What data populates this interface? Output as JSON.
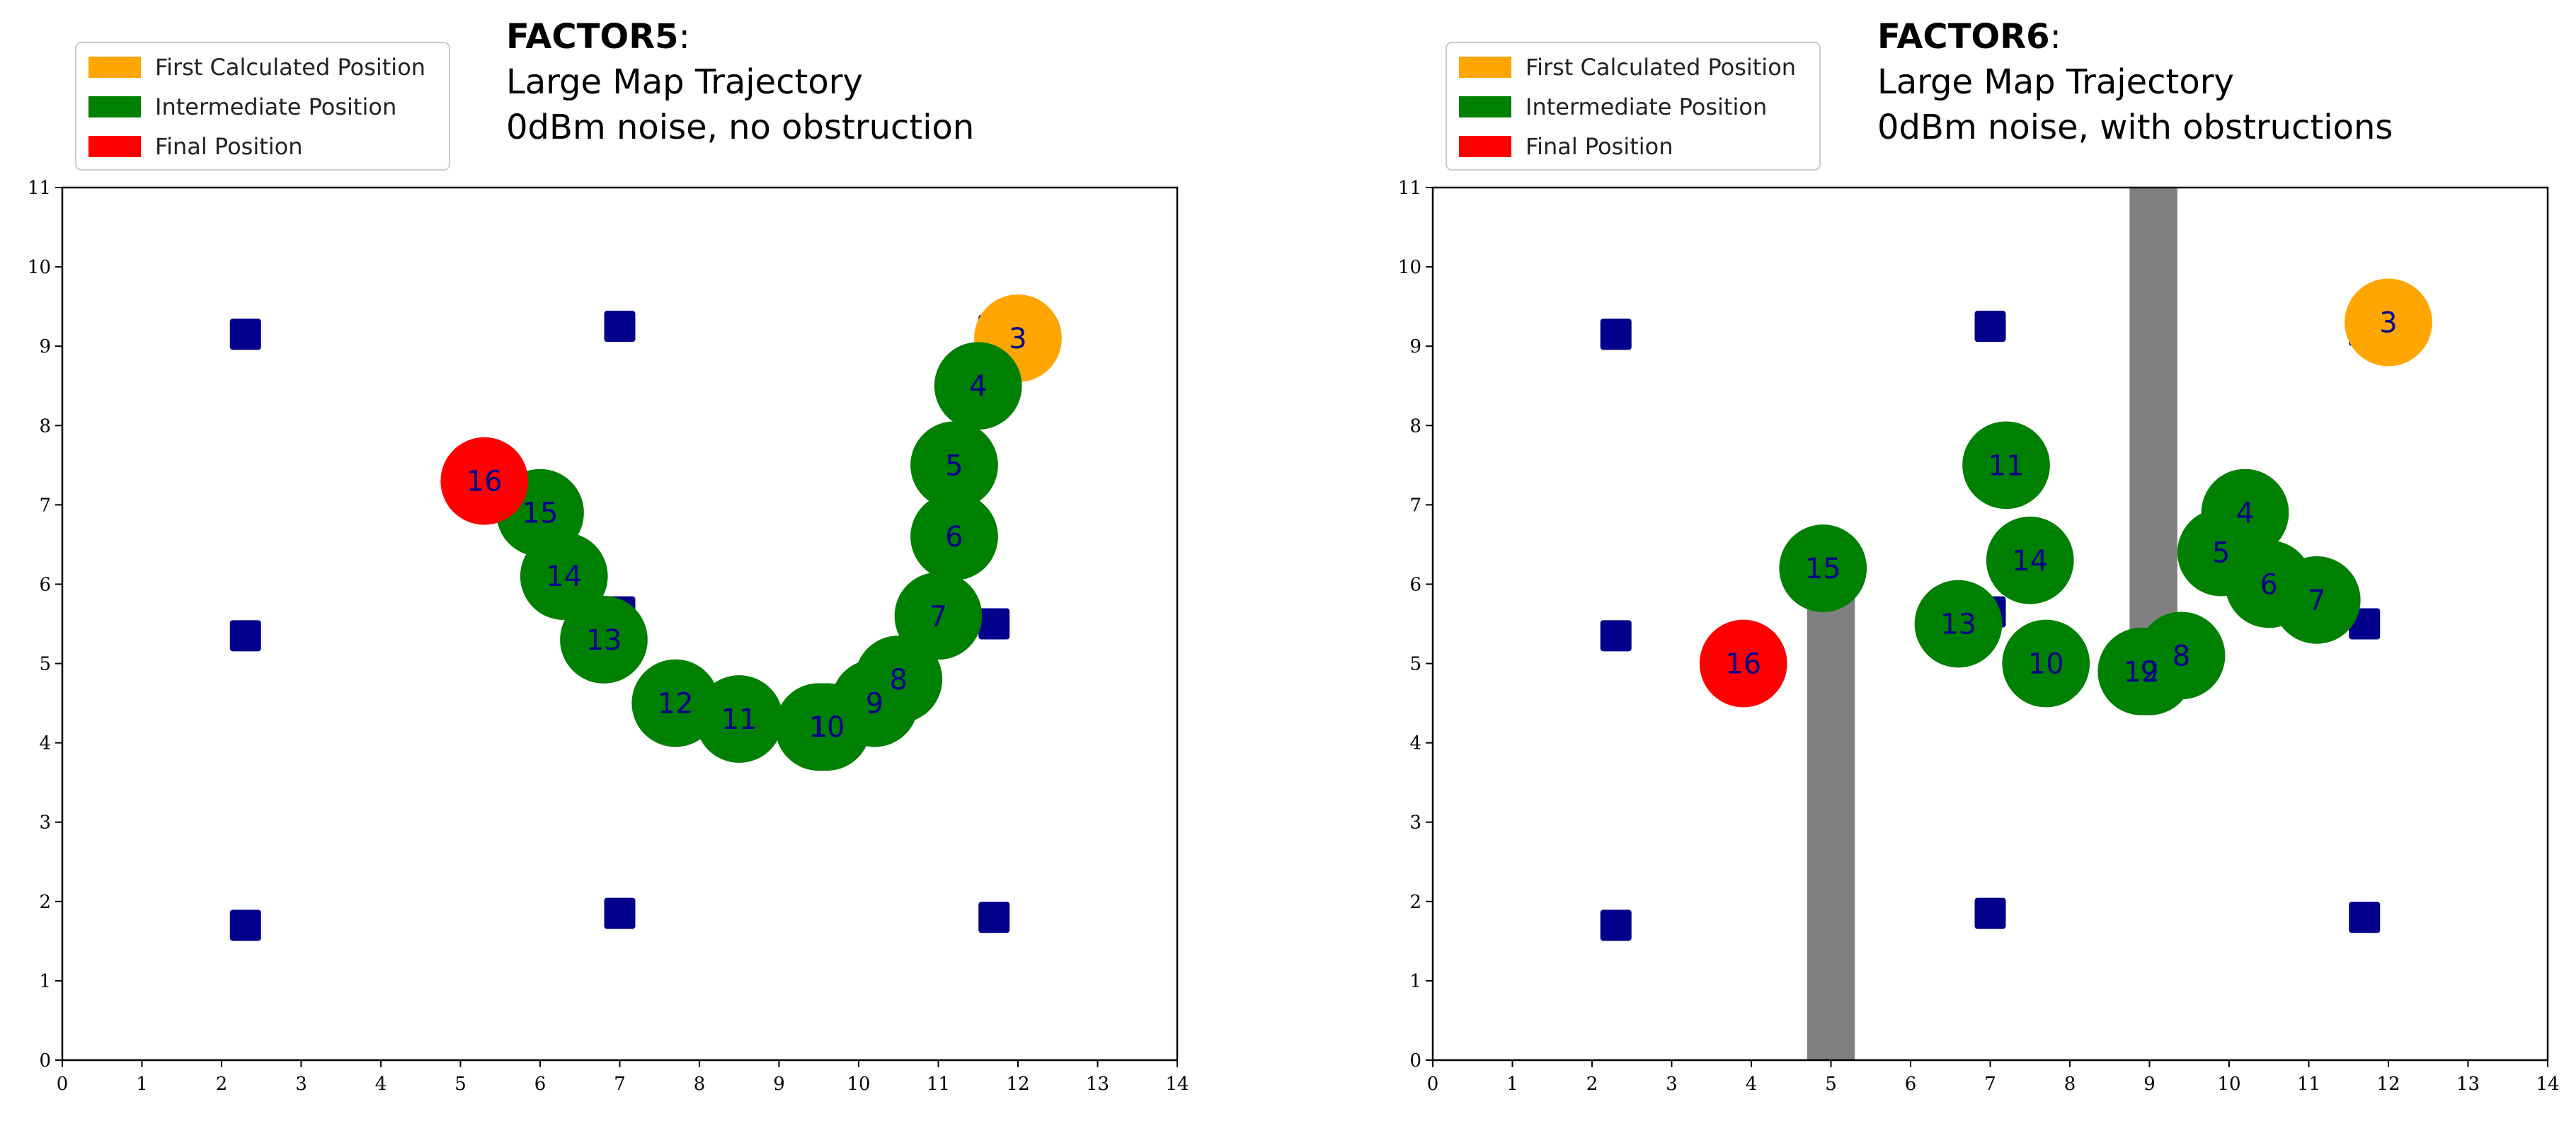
{
  "colors": {
    "first": "#ffa500",
    "intermediate": "#008000",
    "final": "#ff0000",
    "anchor": "#00008b",
    "obstruction": "#808080",
    "label": "#00008b"
  },
  "chart_data": [
    {
      "type": "scatter",
      "title": "FACTOR5:",
      "title_bold": "FACTOR5",
      "title_suffix": ":",
      "subtitle_lines": [
        "Large Map Trajectory",
        "0dBm noise, no obstruction"
      ],
      "xlim": [
        0,
        14
      ],
      "ylim": [
        0,
        11
      ],
      "x_ticks": [
        "0",
        "1",
        "2",
        "3",
        "4",
        "5",
        "6",
        "7",
        "8",
        "9",
        "10",
        "11",
        "12",
        "13",
        "14"
      ],
      "y_ticks": [
        "0",
        "1",
        "2",
        "3",
        "4",
        "5",
        "6",
        "7",
        "8",
        "9",
        "10",
        "11"
      ],
      "legend": {
        "placement": "top-left",
        "entries": [
          {
            "label": "First Calculated Position",
            "kind": "first"
          },
          {
            "label": "Intermediate Position",
            "kind": "intermediate"
          },
          {
            "label": "Final Position",
            "kind": "final"
          }
        ]
      },
      "anchors": [
        {
          "x": 2.3,
          "y": 9.15
        },
        {
          "x": 7.0,
          "y": 9.25
        },
        {
          "x": 11.7,
          "y": 9.2
        },
        {
          "x": 2.3,
          "y": 5.35
        },
        {
          "x": 7.0,
          "y": 5.65
        },
        {
          "x": 11.7,
          "y": 5.5
        },
        {
          "x": 2.3,
          "y": 1.7
        },
        {
          "x": 7.0,
          "y": 1.85
        },
        {
          "x": 11.7,
          "y": 1.8
        }
      ],
      "obstructions": [],
      "positions": [
        {
          "label": "3",
          "x": 12.0,
          "y": 9.1,
          "kind": "first"
        },
        {
          "label": "4",
          "x": 11.5,
          "y": 8.5,
          "kind": "intermediate"
        },
        {
          "label": "5",
          "x": 11.2,
          "y": 7.5,
          "kind": "intermediate"
        },
        {
          "label": "6",
          "x": 11.2,
          "y": 6.6,
          "kind": "intermediate"
        },
        {
          "label": "7",
          "x": 11.0,
          "y": 5.6,
          "kind": "intermediate"
        },
        {
          "label": "8",
          "x": 10.5,
          "y": 4.8,
          "kind": "intermediate"
        },
        {
          "label": "9",
          "x": 10.2,
          "y": 4.5,
          "kind": "intermediate"
        },
        {
          "label": "1",
          "x": 9.5,
          "y": 4.2,
          "kind": "intermediate"
        },
        {
          "label": "10",
          "x": 9.6,
          "y": 4.2,
          "kind": "intermediate"
        },
        {
          "label": "11",
          "x": 8.5,
          "y": 4.3,
          "kind": "intermediate"
        },
        {
          "label": "12",
          "x": 7.7,
          "y": 4.5,
          "kind": "intermediate"
        },
        {
          "label": "13",
          "x": 6.8,
          "y": 5.3,
          "kind": "intermediate"
        },
        {
          "label": "14",
          "x": 6.3,
          "y": 6.1,
          "kind": "intermediate"
        },
        {
          "label": "15",
          "x": 6.0,
          "y": 6.9,
          "kind": "intermediate"
        },
        {
          "label": "16",
          "x": 5.3,
          "y": 7.3,
          "kind": "final"
        }
      ]
    },
    {
      "type": "scatter",
      "title": "FACTOR6:",
      "title_bold": "FACTOR6",
      "title_suffix": ":",
      "subtitle_lines": [
        "Large Map Trajectory",
        "0dBm noise, with obstructions"
      ],
      "xlim": [
        0,
        14
      ],
      "ylim": [
        0,
        11
      ],
      "x_ticks": [
        "0",
        "1",
        "2",
        "3",
        "4",
        "5",
        "6",
        "7",
        "8",
        "9",
        "10",
        "11",
        "12",
        "13",
        "14"
      ],
      "y_ticks": [
        "0",
        "1",
        "2",
        "3",
        "4",
        "5",
        "6",
        "7",
        "8",
        "9",
        "10",
        "11"
      ],
      "legend": {
        "placement": "top-left",
        "entries": [
          {
            "label": "First Calculated Position",
            "kind": "first"
          },
          {
            "label": "Intermediate Position",
            "kind": "intermediate"
          },
          {
            "label": "Final Position",
            "kind": "final"
          }
        ]
      },
      "anchors": [
        {
          "x": 2.3,
          "y": 9.15
        },
        {
          "x": 7.0,
          "y": 9.25
        },
        {
          "x": 11.7,
          "y": 9.2
        },
        {
          "x": 2.3,
          "y": 5.35
        },
        {
          "x": 7.0,
          "y": 5.65
        },
        {
          "x": 11.7,
          "y": 5.5
        },
        {
          "x": 2.3,
          "y": 1.7
        },
        {
          "x": 7.0,
          "y": 1.85
        },
        {
          "x": 11.7,
          "y": 1.8
        }
      ],
      "obstructions": [
        {
          "x0": 4.7,
          "x1": 5.3,
          "y0": 0,
          "y1": 6.0
        },
        {
          "x0": 8.75,
          "x1": 9.35,
          "y0": 5.0,
          "y1": 11
        }
      ],
      "positions": [
        {
          "label": "3",
          "x": 12.0,
          "y": 9.3,
          "kind": "first"
        },
        {
          "label": "4",
          "x": 10.2,
          "y": 6.9,
          "kind": "intermediate"
        },
        {
          "label": "5",
          "x": 9.9,
          "y": 6.4,
          "kind": "intermediate"
        },
        {
          "label": "6",
          "x": 10.5,
          "y": 6.0,
          "kind": "intermediate"
        },
        {
          "label": "7",
          "x": 11.1,
          "y": 5.8,
          "kind": "intermediate"
        },
        {
          "label": "8",
          "x": 9.4,
          "y": 5.1,
          "kind": "intermediate"
        },
        {
          "label": "9",
          "x": 9.0,
          "y": 4.9,
          "kind": "intermediate"
        },
        {
          "label": "10",
          "x": 7.7,
          "y": 5.0,
          "kind": "intermediate"
        },
        {
          "label": "11",
          "x": 7.2,
          "y": 7.5,
          "kind": "intermediate"
        },
        {
          "label": "12",
          "x": 8.9,
          "y": 4.9,
          "kind": "intermediate"
        },
        {
          "label": "13",
          "x": 6.6,
          "y": 5.5,
          "kind": "intermediate"
        },
        {
          "label": "14",
          "x": 7.5,
          "y": 6.3,
          "kind": "intermediate"
        },
        {
          "label": "15",
          "x": 4.9,
          "y": 6.2,
          "kind": "intermediate"
        },
        {
          "label": "16",
          "x": 3.9,
          "y": 5.0,
          "kind": "final"
        }
      ]
    }
  ]
}
